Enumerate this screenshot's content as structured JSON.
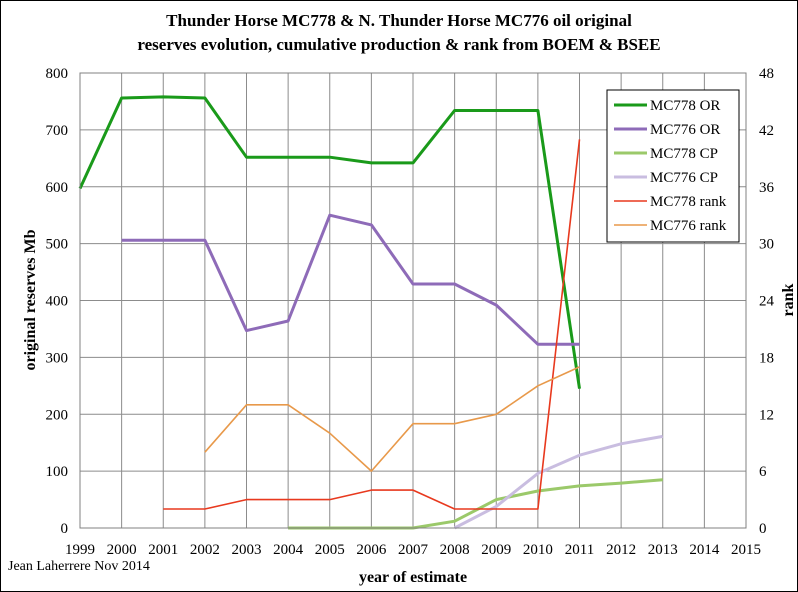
{
  "chart_data": {
    "type": "line",
    "title_lines": [
      "Thunder Horse MC778 & N. Thunder Horse MC776 oil original",
      "reserves evolution, cumulative production & rank from BOEM & BSEE"
    ],
    "xlabel": "year of estimate",
    "ylabel": "original reserves Mb",
    "y2label": "rank",
    "credit": "Jean Laherrere Nov 2014",
    "xlim": [
      1999,
      2015
    ],
    "ylim": [
      0,
      800
    ],
    "y2lim": [
      0,
      48
    ],
    "x_ticks": [
      1999,
      2000,
      2001,
      2002,
      2003,
      2004,
      2005,
      2006,
      2007,
      2008,
      2009,
      2010,
      2011,
      2012,
      2013,
      2014,
      2015
    ],
    "y_ticks": [
      0,
      100,
      200,
      300,
      400,
      500,
      600,
      700,
      800
    ],
    "y2_ticks": [
      0,
      6,
      12,
      18,
      24,
      30,
      36,
      42,
      48
    ],
    "grid": true,
    "legend_position": "top-right",
    "series": [
      {
        "name": "MC778 OR",
        "color": "#1a9a1a",
        "width": 3,
        "axis": "left",
        "x": [
          1999,
          2000,
          2001,
          2002,
          2003,
          2004,
          2005,
          2006,
          2007,
          2008,
          2009,
          2010,
          2011
        ],
        "y": [
          597,
          756,
          758,
          756,
          652,
          652,
          652,
          642,
          642,
          734,
          734,
          734,
          245
        ]
      },
      {
        "name": "MC776 OR",
        "color": "#8e6bb8",
        "width": 3,
        "axis": "left",
        "x": [
          2000,
          2001,
          2002,
          2003,
          2004,
          2005,
          2006,
          2007,
          2008,
          2009,
          2010,
          2011
        ],
        "y": [
          506,
          506,
          506,
          347,
          364,
          550,
          533,
          429,
          429,
          392,
          323,
          323
        ]
      },
      {
        "name": "MC778 CP",
        "color": "#9bc96a",
        "width": 3,
        "axis": "left",
        "x": [
          2004,
          2005,
          2006,
          2007,
          2008,
          2009,
          2010,
          2011,
          2012,
          2013
        ],
        "y": [
          0,
          0,
          0,
          0,
          12,
          50,
          65,
          74,
          79,
          85
        ]
      },
      {
        "name": "MC776 CP",
        "color": "#c9bde0",
        "width": 3,
        "axis": "left",
        "x": [
          2008,
          2009,
          2010,
          2011,
          2012,
          2013
        ],
        "y": [
          0,
          38,
          96,
          128,
          148,
          161
        ]
      },
      {
        "name": "MC778 rank",
        "color": "#e8391e",
        "width": 1.6,
        "axis": "right",
        "x": [
          2001,
          2002,
          2003,
          2004,
          2005,
          2006,
          2007,
          2008,
          2009,
          2010,
          2011
        ],
        "y": [
          2,
          2,
          3,
          3,
          3,
          4,
          4,
          2,
          2,
          2,
          41
        ]
      },
      {
        "name": "MC776 rank",
        "color": "#e8994a",
        "width": 1.6,
        "axis": "right",
        "x": [
          2002,
          2003,
          2004,
          2005,
          2006,
          2007,
          2008,
          2009,
          2010,
          2011
        ],
        "y": [
          8,
          13,
          13,
          10,
          6,
          11,
          11,
          12,
          15,
          17
        ]
      }
    ]
  }
}
